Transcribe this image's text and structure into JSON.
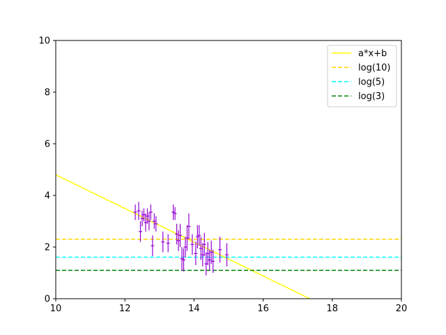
{
  "chart_data": {
    "type": "scatter",
    "title": "",
    "xlabel": "",
    "ylabel": "",
    "xlim": [
      10,
      20
    ],
    "ylim": [
      0,
      10
    ],
    "xticks": [
      10,
      12,
      14,
      16,
      18,
      20
    ],
    "yticks": [
      0,
      2,
      4,
      6,
      8,
      10
    ],
    "grid": false,
    "legend_position": "top-right",
    "series": [
      {
        "name": "a*x+b",
        "kind": "line",
        "color": "#ffff00",
        "dash": "solid",
        "x": [
          10,
          17.35
        ],
        "y": [
          4.8,
          0.0
        ]
      },
      {
        "name": "log(10)",
        "kind": "hline",
        "color": "#ffd700",
        "dash": "dashed",
        "y": 2.303
      },
      {
        "name": "log(5)",
        "kind": "hline",
        "color": "#00ffff",
        "dash": "dashed",
        "y": 1.609
      },
      {
        "name": "log(3)",
        "kind": "hline",
        "color": "#008000",
        "dash": "dashed",
        "y": 1.099
      }
    ],
    "errorbar_points": {
      "color": "#9400d3",
      "xerr": 0.05,
      "points": [
        [
          12.3,
          3.35,
          0.3
        ],
        [
          12.4,
          3.4,
          0.35
        ],
        [
          12.45,
          2.6,
          0.4
        ],
        [
          12.5,
          3.1,
          0.3
        ],
        [
          12.55,
          3.25,
          0.25
        ],
        [
          12.6,
          2.95,
          0.35
        ],
        [
          12.65,
          3.2,
          0.3
        ],
        [
          12.7,
          3.0,
          0.35
        ],
        [
          12.75,
          3.35,
          0.3
        ],
        [
          12.8,
          2.05,
          0.4
        ],
        [
          12.85,
          3.0,
          0.3
        ],
        [
          12.9,
          2.9,
          0.3
        ],
        [
          13.1,
          2.2,
          0.4
        ],
        [
          13.25,
          2.15,
          0.35
        ],
        [
          13.4,
          3.35,
          0.3
        ],
        [
          13.45,
          3.3,
          0.25
        ],
        [
          13.5,
          2.5,
          0.4
        ],
        [
          13.55,
          2.25,
          0.4
        ],
        [
          13.6,
          2.45,
          0.45
        ],
        [
          13.65,
          1.55,
          0.45
        ],
        [
          13.7,
          1.5,
          0.45
        ],
        [
          13.75,
          2.0,
          0.4
        ],
        [
          13.8,
          2.35,
          0.5
        ],
        [
          13.85,
          2.8,
          0.5
        ],
        [
          13.95,
          2.1,
          0.4
        ],
        [
          14.05,
          1.75,
          0.45
        ],
        [
          14.1,
          2.4,
          0.45
        ],
        [
          14.15,
          2.45,
          0.4
        ],
        [
          14.2,
          1.95,
          0.45
        ],
        [
          14.25,
          1.7,
          0.45
        ],
        [
          14.3,
          2.1,
          0.45
        ],
        [
          14.35,
          1.35,
          0.45
        ],
        [
          14.4,
          1.75,
          0.45
        ],
        [
          14.45,
          1.5,
          0.4
        ],
        [
          14.5,
          1.8,
          0.45
        ],
        [
          14.55,
          1.45,
          0.45
        ],
        [
          14.75,
          1.9,
          0.5
        ],
        [
          14.95,
          1.7,
          0.45
        ]
      ]
    }
  }
}
